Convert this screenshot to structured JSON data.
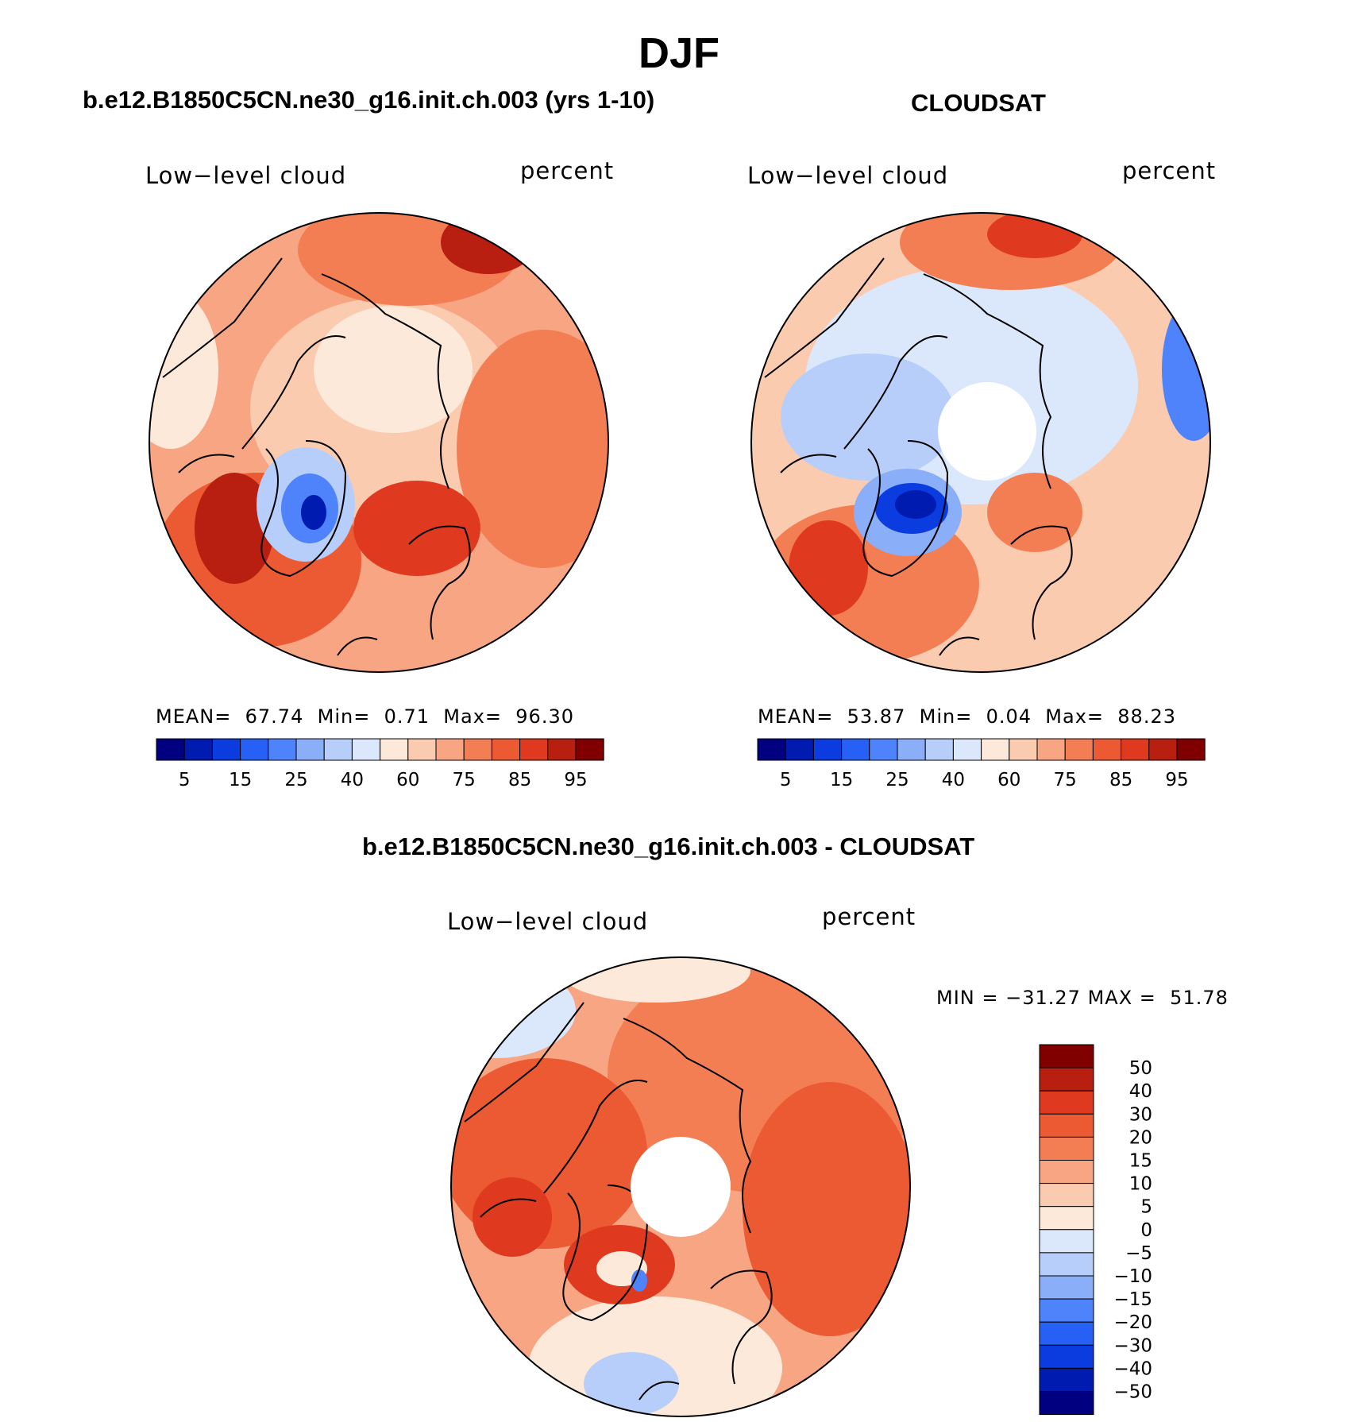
{
  "title": "DJF",
  "panels": [
    {
      "id": "model",
      "subtitle": "b.e12.B1850C5CN.ne30_g16.init.ch.003 (yrs 1-10)",
      "left_label": "Low−level cloud",
      "right_label": "percent",
      "stats": {
        "mean_label": "MEAN=",
        "mean": "67.74",
        "min_label": "Min=",
        "min": "0.71",
        "max_label": "Max=",
        "max": "96.30"
      },
      "polar_hole": false
    },
    {
      "id": "obs",
      "subtitle": "CLOUDSAT",
      "left_label": "Low−level cloud",
      "right_label": "percent",
      "stats": {
        "mean_label": "MEAN=",
        "mean": "53.87",
        "min_label": "Min=",
        "min": "0.04",
        "max_label": "Max=",
        "max": "88.23"
      },
      "polar_hole": true
    }
  ],
  "abs_colorbar": {
    "ticks": [
      "5",
      "15",
      "25",
      "40",
      "60",
      "75",
      "85",
      "95"
    ],
    "colors": [
      "#000080",
      "#001bb0",
      "#0a3ce0",
      "#2660f5",
      "#4f83fb",
      "#8aaef8",
      "#b8cefa",
      "#dbe8fb",
      "#fde9d9",
      "#fbcbb0",
      "#f8a583",
      "#f47e54",
      "#ec5a33",
      "#df3a1f",
      "#b81f10",
      "#800000"
    ]
  },
  "difference": {
    "subtitle": "b.e12.B1850C5CN.ne30_g16.init.ch.003 - CLOUDSAT",
    "left_label": "Low−level cloud",
    "right_label": "percent",
    "stats": {
      "min_label": "MIN =",
      "min": "−31.27",
      "max_label": "MAX =",
      "max": "51.78"
    },
    "polar_hole": true,
    "colorbar": {
      "ticks": [
        "50",
        "40",
        "30",
        "20",
        "15",
        "10",
        "5",
        "0",
        "−5",
        "−10",
        "−15",
        "−20",
        "−30",
        "−40",
        "−50"
      ],
      "colors": [
        "#800000",
        "#b81f10",
        "#df3a1f",
        "#ec5a33",
        "#f47e54",
        "#f8a583",
        "#fbcbb0",
        "#fde9d9",
        "#dbe8fb",
        "#b8cefa",
        "#8aaef8",
        "#4f83fb",
        "#2660f5",
        "#0a3ce0",
        "#001bb0",
        "#000080"
      ]
    }
  },
  "colors": {
    "warm": "#f47e54",
    "cool": "#4f83fb"
  }
}
